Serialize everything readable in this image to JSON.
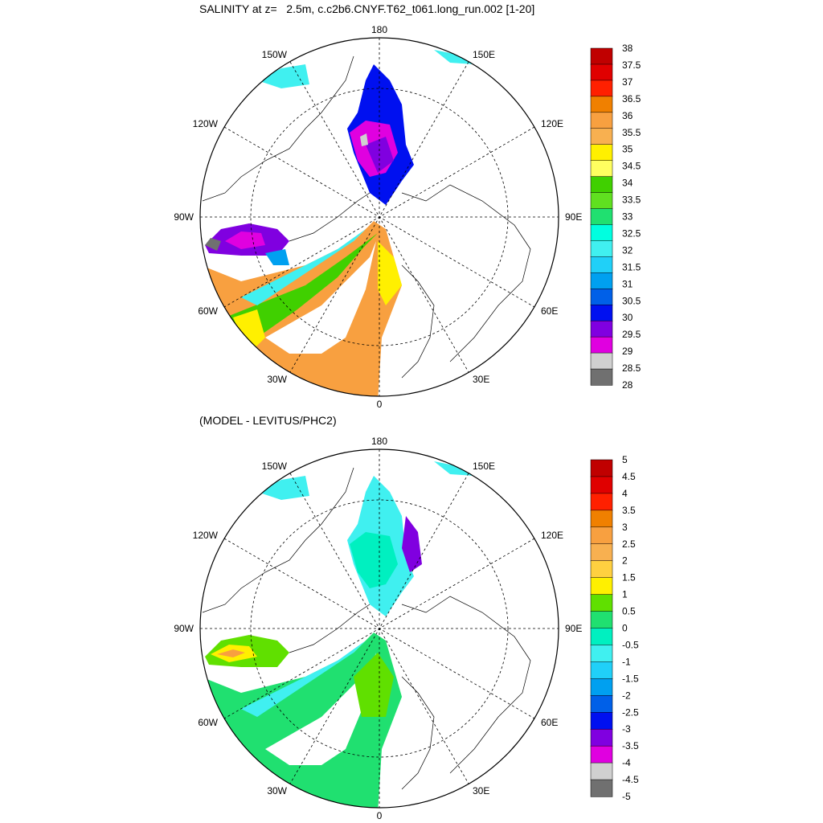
{
  "top": {
    "title": "SALINITY at z=   2.5m, c.c2b6.CNYF.T62_t061.long_run.002 [1-20]",
    "lon_labels": {
      "n": "180",
      "s": "0",
      "w": "90W",
      "e": "90E",
      "nw": "150W",
      "nw2": "120W",
      "sw": "60W",
      "sw2": "30W",
      "ne": "150E",
      "ne2": "120E",
      "se": "60E",
      "se2": "30E"
    },
    "colorbar": {
      "labels": [
        "38",
        "37.5",
        "37",
        "36.5",
        "36",
        "35.5",
        "35",
        "34.5",
        "34",
        "33.5",
        "33",
        "32.5",
        "32",
        "31.5",
        "31",
        "30.5",
        "30",
        "29.5",
        "29",
        "28.5",
        "28"
      ],
      "colors": [
        "#c00000",
        "#e00000",
        "#ff2000",
        "#f08000",
        "#f8a040",
        "#f8b050",
        "#fff000",
        "#ffff60",
        "#40d000",
        "#60e020",
        "#20e070",
        "#00ffe0",
        "#40f0f0",
        "#20d0f8",
        "#00a0f0",
        "#0060e8",
        "#0010f0",
        "#8000e0",
        "#e000e0",
        "#d0d0d0",
        "#707070"
      ]
    }
  },
  "bottom": {
    "title": "(MODEL - LEVITUS/PHC2)",
    "lon_labels": {
      "n": "180",
      "s": "0",
      "w": "90W",
      "e": "90E",
      "nw": "150W",
      "nw2": "120W",
      "sw": "60W",
      "sw2": "30W",
      "ne": "150E",
      "ne2": "120E",
      "se": "60E",
      "se2": "30E"
    },
    "colorbar": {
      "labels": [
        "5",
        "4.5",
        "4",
        "3.5",
        "3",
        "2.5",
        "2",
        "1.5",
        "1",
        "0.5",
        "0",
        "-0.5",
        "-1",
        "-1.5",
        "-2",
        "-2.5",
        "-3",
        "-3.5",
        "-4",
        "-4.5",
        "-5"
      ],
      "colors": [
        "#c00000",
        "#e00000",
        "#ff2000",
        "#f08000",
        "#f8a040",
        "#f8b050",
        "#ffd040",
        "#fff000",
        "#60e000",
        "#20e070",
        "#00f0c0",
        "#40f0f0",
        "#20d0f8",
        "#00a0f0",
        "#0060e8",
        "#0010f0",
        "#8000e0",
        "#e000e0",
        "#d0d0d0",
        "#707070"
      ]
    }
  }
}
